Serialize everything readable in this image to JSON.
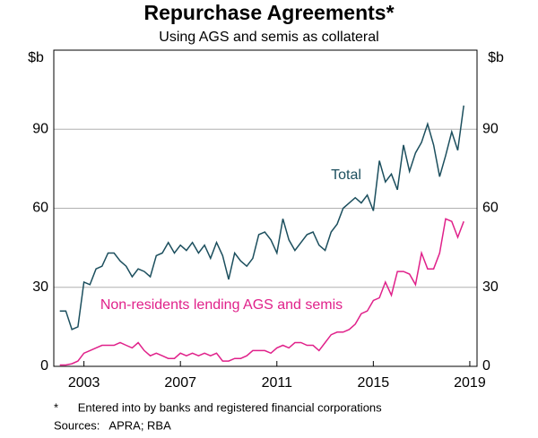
{
  "chart_data": {
    "type": "line",
    "title": "Repurchase Agreements*",
    "subtitle": "Using AGS and semis as collateral",
    "y_label": "$b",
    "y2_label": "$b",
    "annotations": [
      "Total",
      "Non-residents lending AGS and semis"
    ],
    "footnotes": [
      "*      Entered into by banks and registered financial corporations",
      "Sources:   APRA; RBA"
    ],
    "x": [
      2002,
      2002.25,
      2002.5,
      2002.75,
      2003,
      2003.25,
      2003.5,
      2003.75,
      2004,
      2004.25,
      2004.5,
      2004.75,
      2005,
      2005.25,
      2005.5,
      2005.75,
      2006,
      2006.25,
      2006.5,
      2006.75,
      2007,
      2007.25,
      2007.5,
      2007.75,
      2008,
      2008.25,
      2008.5,
      2008.75,
      2009,
      2009.25,
      2009.5,
      2009.75,
      2010,
      2010.25,
      2010.5,
      2010.75,
      2011,
      2011.25,
      2011.5,
      2011.75,
      2012,
      2012.25,
      2012.5,
      2012.75,
      2013,
      2013.25,
      2013.5,
      2013.75,
      2014,
      2014.25,
      2014.5,
      2014.75,
      2015,
      2015.25,
      2015.5,
      2015.75,
      2016,
      2016.25,
      2016.5,
      2016.75,
      2017,
      2017.25,
      2017.5,
      2017.75,
      2018,
      2018.25,
      2018.5,
      2018.75
    ],
    "series": [
      {
        "name": "Total",
        "color": "#1c4f5e",
        "values": [
          21,
          21,
          14,
          15,
          32,
          31,
          37,
          38,
          43,
          43,
          40,
          38,
          34,
          37,
          36,
          34,
          42,
          43,
          47,
          43,
          46,
          44,
          47,
          43,
          46,
          41,
          47,
          42,
          33,
          43,
          40,
          38,
          41,
          50,
          51,
          48,
          43,
          56,
          48,
          44,
          47,
          50,
          51,
          46,
          44,
          51,
          54,
          60,
          62,
          64,
          62,
          65,
          59,
          78,
          70,
          73,
          67,
          84,
          74,
          81,
          85,
          92,
          84,
          72,
          80,
          89,
          82,
          99
        ]
      },
      {
        "name": "Non-residents lending AGS and semis",
        "color": "#e0218a",
        "values": [
          0.5,
          0.5,
          1,
          2,
          5,
          6,
          7,
          8,
          8,
          8,
          9,
          8,
          7,
          9,
          6,
          4,
          5,
          4,
          3,
          3,
          5,
          4,
          5,
          4,
          5,
          4,
          5,
          2,
          2,
          3,
          3,
          4,
          6,
          6,
          6,
          5,
          7,
          8,
          7,
          9,
          9,
          8,
          8,
          6,
          9,
          12,
          13,
          13,
          14,
          16,
          20,
          21,
          25,
          26,
          32,
          27,
          36,
          36,
          35,
          31,
          43,
          37,
          37,
          43,
          56,
          55,
          49,
          55
        ]
      }
    ],
    "xlim": [
      2001.75,
      2019.3
    ],
    "xticks": [
      2003,
      2007,
      2011,
      2015,
      2019
    ],
    "ylim": [
      0,
      120
    ],
    "yticks": [
      0,
      30,
      60,
      90
    ],
    "y2lim": [
      0,
      120
    ],
    "y2ticks": [
      0,
      30,
      60,
      90
    ],
    "grid": true
  }
}
